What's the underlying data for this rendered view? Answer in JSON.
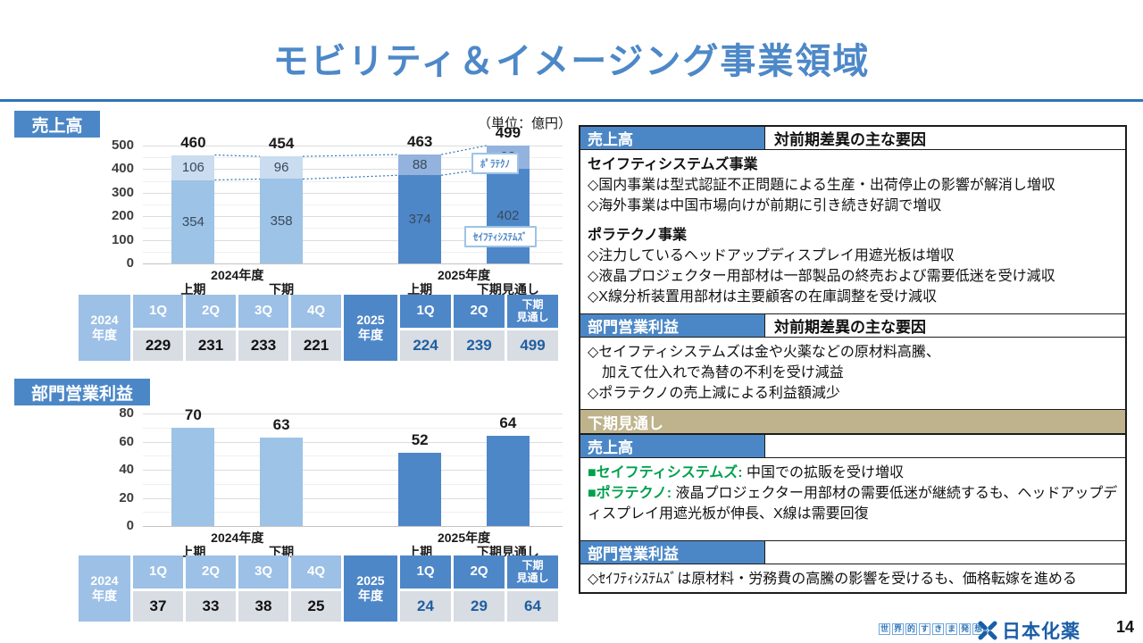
{
  "title": "モビリティ＆イメージング事業領域",
  "unit_label": "（単位：億円）",
  "colors": {
    "accent_blue": "#4b87c6",
    "rule_blue": "#2e75b6",
    "bar_2024": "#9dc3e6",
    "bar_2024_top": "#c9dcf0",
    "bar_2025": "#4e87c8",
    "bar_2025_top": "#93b3de",
    "table_2024_bg": "#9cc0e6",
    "table_2025_bg": "#4e87c8",
    "value_cell_bg": "#d8dce3",
    "value_2025_text": "#1f5fa0",
    "tan_header": "#beb38c",
    "green_text": "#00a04e",
    "dotted_line": "#2e75b6"
  },
  "chart_data": [
    {
      "type": "stacked-bar",
      "title": "売上高",
      "unit": "億円",
      "categories": [
        "2024年度 上期",
        "2024年度 下期",
        "2025年度 上期",
        "2025年度 下期見通し"
      ],
      "x_group_labels": [
        "2024年度",
        "2025年度"
      ],
      "x_period_labels": [
        "上期",
        "下期",
        "上期",
        "下期見通し"
      ],
      "series": [
        {
          "name": "セイフティシステムズ",
          "values": [
            354,
            358,
            374,
            402
          ]
        },
        {
          "name": "ポラテクノ",
          "values": [
            106,
            96,
            88,
            98
          ]
        }
      ],
      "totals": [
        460,
        454,
        463,
        499
      ],
      "legend": [
        {
          "label": "ﾎﾟﾗﾃｸﾉ"
        },
        {
          "label": "ｾｲﾌﾃｨｼｽﾃﾑｽﾞ"
        }
      ],
      "ylim": [
        0,
        500
      ],
      "yticks": [
        0,
        100,
        200,
        300,
        400,
        500
      ],
      "grid": true,
      "legend_position": "right"
    },
    {
      "type": "bar",
      "title": "部門営業利益",
      "unit": "億円",
      "categories": [
        "2024年度 上期",
        "2024年度 下期",
        "2025年度 上期",
        "2025年度 下期見通し"
      ],
      "x_group_labels": [
        "2024年度",
        "2025年度"
      ],
      "x_period_labels": [
        "上期",
        "下期",
        "上期",
        "下期見通し"
      ],
      "values": [
        70,
        63,
        52,
        64
      ],
      "ylim": [
        0,
        80
      ],
      "yticks": [
        0,
        20,
        40,
        60,
        80
      ],
      "grid": true
    }
  ],
  "tables": {
    "sales": {
      "y2024": {
        "label": "2024\n年度",
        "headers": [
          "1Q",
          "2Q",
          "3Q",
          "4Q"
        ],
        "values": [
          229,
          231,
          233,
          221
        ]
      },
      "y2025": {
        "label": "2025\n年度",
        "headers": [
          "1Q",
          "2Q",
          "下期\n見通し"
        ],
        "values": [
          224,
          239,
          499
        ]
      }
    },
    "profit": {
      "y2024": {
        "label": "2024\n年度",
        "headers": [
          "1Q",
          "2Q",
          "3Q",
          "4Q"
        ],
        "values": [
          37,
          33,
          38,
          25
        ]
      },
      "y2025": {
        "label": "2025\n年度",
        "headers": [
          "1Q",
          "2Q",
          "下期\n見通し"
        ],
        "values": [
          24,
          29,
          64
        ]
      }
    }
  },
  "right_panel": {
    "sales_header": "売上高",
    "factor_header": "対前期差異の主な要因",
    "sales_factors": {
      "group1_title": "セイフティシステムズ事業",
      "group1_lines": [
        "◇国内事業は型式認証不正問題による生産・出荷停止の影響が解消し増収",
        "◇海外事業は中国市場向けが前期に引き続き好調で増収"
      ],
      "group2_title": "ポラテクノ事業",
      "group2_lines": [
        "◇注力しているヘッドアップディスプレイ用遮光板は増収",
        "◇液晶プロジェクター用部材は一部製品の終売および需要低迷を受け減収",
        "◇X線分析装置用部材は主要顧客の在庫調整を受け減収"
      ]
    },
    "profit_header": "部門営業利益",
    "profit_factors": [
      "◇セイフティシステムズは金や火薬などの原材料高騰、",
      "　加えて仕入れで為替の不利を受け減益",
      "◇ポラテクノの売上減による利益額減少"
    ],
    "outlook_header": "下期見通し",
    "outlook_sales_header": "売上高",
    "outlook_sales": [
      {
        "label": "■セイフティシステムズ:",
        "text": " 中国での拡販を受け増収"
      },
      {
        "label": "■ポラテクノ:",
        "text": " 液晶プロジェクター用部材の需要低迷が継続するも、ヘッドアップディスプレイ用遮光板が伸長、X線は需要回復"
      }
    ],
    "outlook_profit_header": "部門営業利益",
    "outlook_profit": "◇ｾｲﾌﾃｨｼｽﾃﾑｽﾞは原材料・労務費の高騰の影響を受けるも、価格転嫁を進める"
  },
  "footer": {
    "tagline": "世界的すきま発想.",
    "company": "日本化薬",
    "page": "14"
  }
}
